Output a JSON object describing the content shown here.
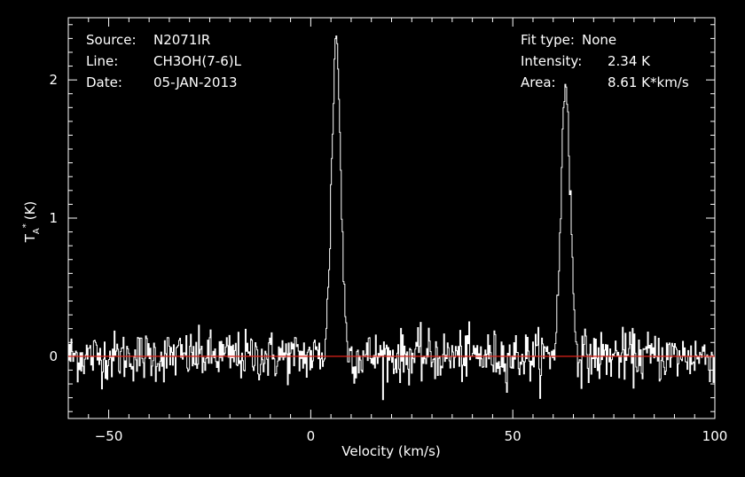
{
  "header": {
    "source_label": "Source:",
    "source_value": "N2071IR",
    "line_label": "Line:",
    "line_value": "CH3OH(7-6)L",
    "date_label": "Date:",
    "date_value": "05-JAN-2013",
    "fit_label": "Fit type:",
    "fit_value": "None",
    "intensity_label": "Intensity:",
    "intensity_value": "2.34 K",
    "area_label": "Area:",
    "area_value": "8.61 K*km/s"
  },
  "chart_data": {
    "type": "line",
    "xlabel": "Velocity (km/s)",
    "ylabel": "T",
    "ylabel_sub": "A",
    "ylabel_sup": "*",
    "ylabel_unit": "(K)",
    "xlim": [
      -60,
      100
    ],
    "ylim": [
      -0.45,
      2.45
    ],
    "x_ticks": [
      -50,
      0,
      50,
      100
    ],
    "x_tick_labels": [
      "−50",
      "0",
      "50",
      "100"
    ],
    "y_ticks": [
      0,
      1,
      2
    ],
    "y_tick_labels": [
      "0",
      "1",
      "2"
    ],
    "grid": false,
    "noise_rms": 0.09,
    "peaks": [
      {
        "center": 6.2,
        "amplitude": 2.3,
        "fwhm": 2.6
      },
      {
        "center": 63.0,
        "amplitude": 2.0,
        "fwhm": 2.6
      }
    ],
    "baseline": {
      "value": 0,
      "color": "#e0231a"
    },
    "line_color": "#ffffff",
    "background": "#000000"
  }
}
